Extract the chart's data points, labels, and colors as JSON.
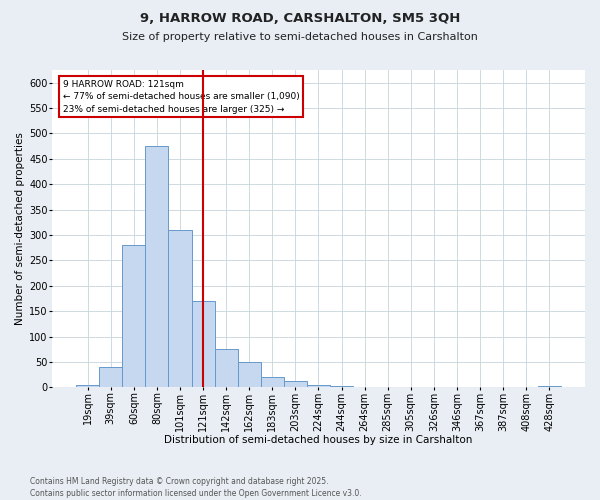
{
  "title": "9, HARROW ROAD, CARSHALTON, SM5 3QH",
  "subtitle": "Size of property relative to semi-detached houses in Carshalton",
  "xlabel": "Distribution of semi-detached houses by size in Carshalton",
  "ylabel": "Number of semi-detached properties",
  "categories": [
    "19sqm",
    "39sqm",
    "60sqm",
    "80sqm",
    "101sqm",
    "121sqm",
    "142sqm",
    "162sqm",
    "183sqm",
    "203sqm",
    "224sqm",
    "244sqm",
    "264sqm",
    "285sqm",
    "305sqm",
    "326sqm",
    "346sqm",
    "367sqm",
    "387sqm",
    "408sqm",
    "428sqm"
  ],
  "values": [
    5,
    40,
    280,
    475,
    310,
    170,
    75,
    50,
    20,
    13,
    5,
    3,
    0,
    0,
    0,
    0,
    0,
    0,
    0,
    0,
    3
  ],
  "bar_color": "#c5d8f0",
  "bar_edge_color": "#6699cc",
  "vline_x": 5,
  "vline_color": "#cc0000",
  "annotation_title": "9 HARROW ROAD: 121sqm",
  "annotation_line1": "← 77% of semi-detached houses are smaller (1,090)",
  "annotation_line2": "23% of semi-detached houses are larger (325) →",
  "annotation_box_color": "#cc0000",
  "ylim": [
    0,
    625
  ],
  "yticks": [
    0,
    50,
    100,
    150,
    200,
    250,
    300,
    350,
    400,
    450,
    500,
    550,
    600
  ],
  "footer_line1": "Contains HM Land Registry data © Crown copyright and database right 2025.",
  "footer_line2": "Contains public sector information licensed under the Open Government Licence v3.0.",
  "bg_color": "#e8eef4",
  "plot_bg_color": "#ffffff",
  "grid_color": "#c8d4dc",
  "title_fontsize": 9.5,
  "subtitle_fontsize": 8,
  "axis_label_fontsize": 7.5,
  "tick_fontsize": 7,
  "footer_fontsize": 5.5
}
